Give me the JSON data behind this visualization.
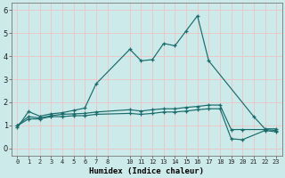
{
  "xlabel": "Humidex (Indice chaleur)",
  "background_color": "#cceaea",
  "grid_color": "#e8c8c8",
  "line_color": "#1a6b6b",
  "xlim": [
    -0.5,
    23.5
  ],
  "ylim": [
    -0.3,
    6.3
  ],
  "x_ticks": [
    0,
    1,
    2,
    3,
    4,
    5,
    6,
    7,
    8,
    10,
    11,
    12,
    13,
    14,
    15,
    16,
    17,
    18,
    19,
    20,
    21,
    22,
    23
  ],
  "y_ticks": [
    0,
    1,
    2,
    3,
    4,
    5,
    6
  ],
  "series1_x": [
    0,
    1,
    2,
    3,
    4,
    5,
    6,
    7,
    10,
    11,
    12,
    13,
    14,
    15,
    16,
    17,
    21,
    22,
    23
  ],
  "series1_y": [
    0.9,
    1.6,
    1.4,
    1.5,
    1.55,
    1.65,
    1.75,
    2.8,
    4.3,
    3.8,
    3.85,
    4.55,
    4.45,
    5.1,
    5.75,
    3.8,
    1.38,
    0.85,
    0.85
  ],
  "series2_x": [
    0,
    1,
    2,
    3,
    4,
    5,
    6,
    7,
    10,
    11,
    12,
    13,
    14,
    15,
    16,
    17,
    18,
    19,
    20,
    22,
    23
  ],
  "series2_y": [
    1.0,
    1.38,
    1.32,
    1.42,
    1.48,
    1.5,
    1.52,
    1.58,
    1.68,
    1.62,
    1.68,
    1.72,
    1.72,
    1.78,
    1.82,
    1.88,
    1.88,
    0.82,
    0.82,
    0.82,
    0.78
  ],
  "series3_x": [
    0,
    1,
    2,
    3,
    4,
    5,
    6,
    7,
    10,
    11,
    12,
    13,
    14,
    15,
    16,
    17,
    18,
    19,
    20,
    22,
    23
  ],
  "series3_y": [
    0.98,
    1.28,
    1.28,
    1.38,
    1.38,
    1.42,
    1.42,
    1.48,
    1.52,
    1.48,
    1.52,
    1.58,
    1.58,
    1.62,
    1.68,
    1.72,
    1.72,
    0.42,
    0.38,
    0.78,
    0.72
  ]
}
